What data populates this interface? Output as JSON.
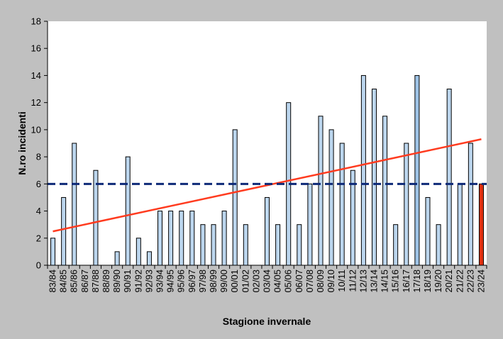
{
  "chart_data": {
    "type": "bar",
    "title": "",
    "xlabel": "Stagione invernale",
    "ylabel": "N.ro incidenti",
    "ylim": [
      0,
      18
    ],
    "yticks": [
      0,
      2,
      4,
      6,
      8,
      10,
      12,
      14,
      16,
      18
    ],
    "grid": false,
    "categories": [
      "83/84",
      "84/85",
      "85/86",
      "86/87",
      "87/88",
      "88/89",
      "89/90",
      "90/91",
      "91/92",
      "92/93",
      "93/94",
      "94/95",
      "95/96",
      "96/97",
      "97/98",
      "98/99",
      "99/00",
      "00/01",
      "01/02",
      "02/03",
      "03/04",
      "04/05",
      "05/06",
      "06/07",
      "07/08",
      "08/09",
      "09/10",
      "10/11",
      "11/12",
      "12/13",
      "13/14",
      "14/15",
      "15/16",
      "16/17",
      "17/18",
      "18/19",
      "19/20",
      "20/21",
      "21/22",
      "22/23",
      "23/24"
    ],
    "values": [
      2,
      5,
      9,
      0,
      7,
      0,
      1,
      8,
      2,
      1,
      4,
      4,
      4,
      4,
      3,
      3,
      4,
      10,
      3,
      0,
      5,
      3,
      12,
      3,
      6,
      11,
      10,
      9,
      7,
      14,
      13,
      11,
      3,
      9,
      14,
      5,
      3,
      13,
      6,
      9,
      6
    ],
    "bar_colors": {
      "default": "#bcd6ee",
      "highlight_17_18": "#9ec3e6",
      "latest": "#e03010",
      "edge": "#000000"
    },
    "trend_line": {
      "color": "#ff3b1f",
      "start_value": 2.5,
      "end_value": 9.3
    },
    "reference_line": {
      "value": 6,
      "color": "#0e2a78",
      "style": "dashed"
    }
  }
}
